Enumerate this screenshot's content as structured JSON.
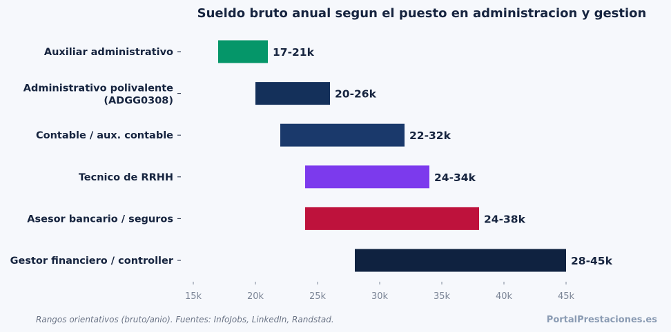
{
  "chart_data": {
    "type": "bar",
    "orientation": "horizontal-range",
    "title": "Sueldo bruto anual segun el puesto en administracion y gestion",
    "xlabel": "",
    "ylabel": "",
    "xlim": [
      15,
      45
    ],
    "x_ticks": [
      15,
      20,
      25,
      30,
      35,
      40,
      45
    ],
    "x_tick_labels": [
      "15k",
      "20k",
      "25k",
      "30k",
      "35k",
      "40k",
      "45k"
    ],
    "grid": false,
    "categories": [
      [
        "Auxiliar administrativo"
      ],
      [
        "Administrativo polivalente",
        "(ADGG0308)"
      ],
      [
        "Contable / aux. contable"
      ],
      [
        "Tecnico de RRHH"
      ],
      [
        "Asesor bancario / seguros"
      ],
      [
        "Gestor financiero / controller"
      ]
    ],
    "ranges": [
      [
        17,
        21
      ],
      [
        20,
        26
      ],
      [
        22,
        32
      ],
      [
        24,
        34
      ],
      [
        24,
        38
      ],
      [
        28,
        45
      ]
    ],
    "data_labels": [
      "17-21k",
      "20-26k",
      "22-32k",
      "24-34k",
      "24-38k",
      "28-45k"
    ],
    "colors": [
      "#059669",
      "#14305a",
      "#1a396b",
      "#7c3aed",
      "#be123c",
      "#0f2240"
    ]
  },
  "footer": {
    "note": "Rangos orientativos (bruto/anio). Fuentes: InfoJobs, LinkedIn, Randstad.",
    "brand": "PortalPrestaciones.es"
  }
}
